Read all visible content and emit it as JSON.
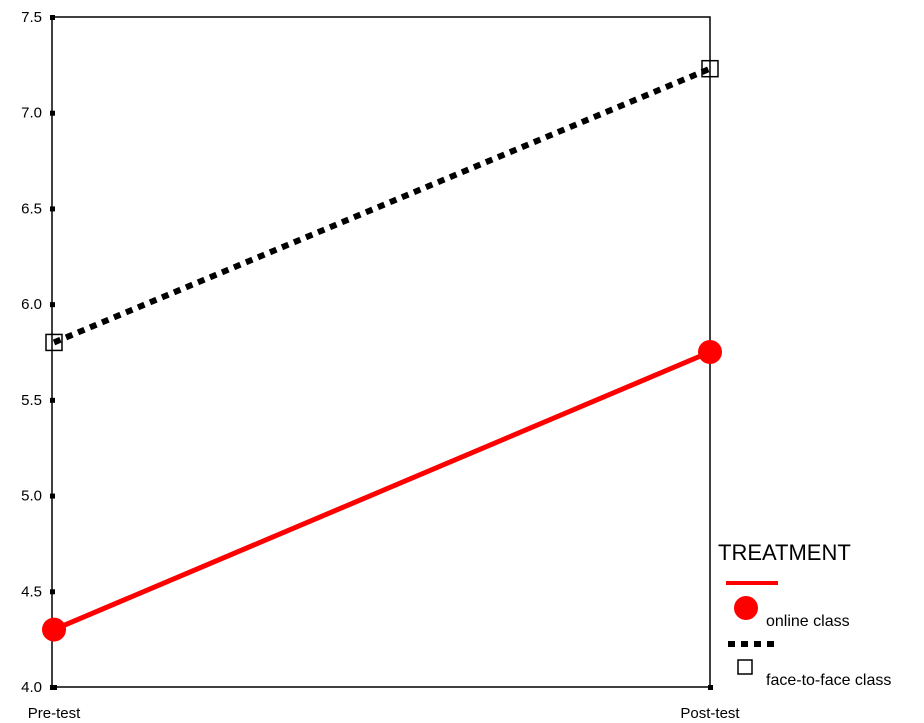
{
  "chart_data": {
    "type": "line",
    "categories": [
      "Pre-test",
      "Post-test"
    ],
    "ylim": [
      4.0,
      7.5
    ],
    "yticks": [
      "4.0",
      "4.5",
      "5.0",
      "5.5",
      "6.0",
      "6.5",
      "7.0",
      "7.5"
    ],
    "grid": false,
    "legend_position": "bottom-right",
    "legend_title": "TREATMENT",
    "series": [
      {
        "name": "online class",
        "values": [
          4.3,
          5.75
        ],
        "color": "#ff0000",
        "line_style": "solid",
        "marker": "filled-circle"
      },
      {
        "name": "face-to-face class",
        "values": [
          5.8,
          7.23
        ],
        "color": "#000000",
        "line_style": "dotted",
        "marker": "open-square"
      }
    ]
  }
}
